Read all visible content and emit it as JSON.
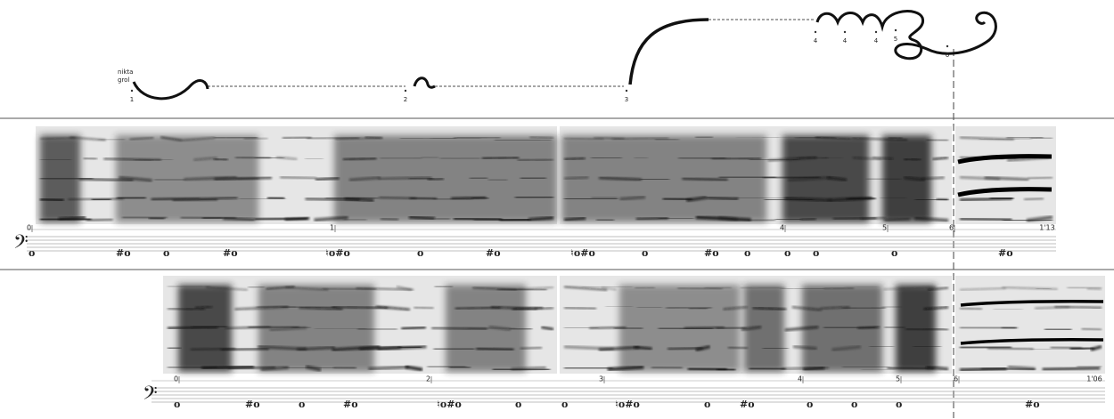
{
  "header": {
    "voice_labels": [
      "nikta",
      "grol"
    ],
    "markers": [
      "1",
      "2",
      "3",
      "4",
      "4",
      "4",
      "5",
      "6"
    ]
  },
  "clef": "𝄢",
  "systems": [
    {
      "timeline": [
        "0",
        "1",
        "4",
        "5",
        "6"
      ],
      "duration": "1'13",
      "notes": [
        "o",
        "#o",
        "o",
        "#o",
        "♮o#o",
        "o",
        "#o",
        "♮o#o",
        "o",
        "#o",
        "o",
        "o",
        "o",
        "o",
        "#o"
      ]
    },
    {
      "timeline": [
        "0",
        "2",
        "3",
        "4",
        "5",
        "6"
      ],
      "duration": "1'06",
      "notes": [
        "o",
        "#o",
        "o",
        "#o",
        "♮o#o",
        "o",
        "o",
        "♮o#o",
        "o",
        "#o",
        "o",
        "o",
        "o",
        "#o"
      ]
    }
  ]
}
